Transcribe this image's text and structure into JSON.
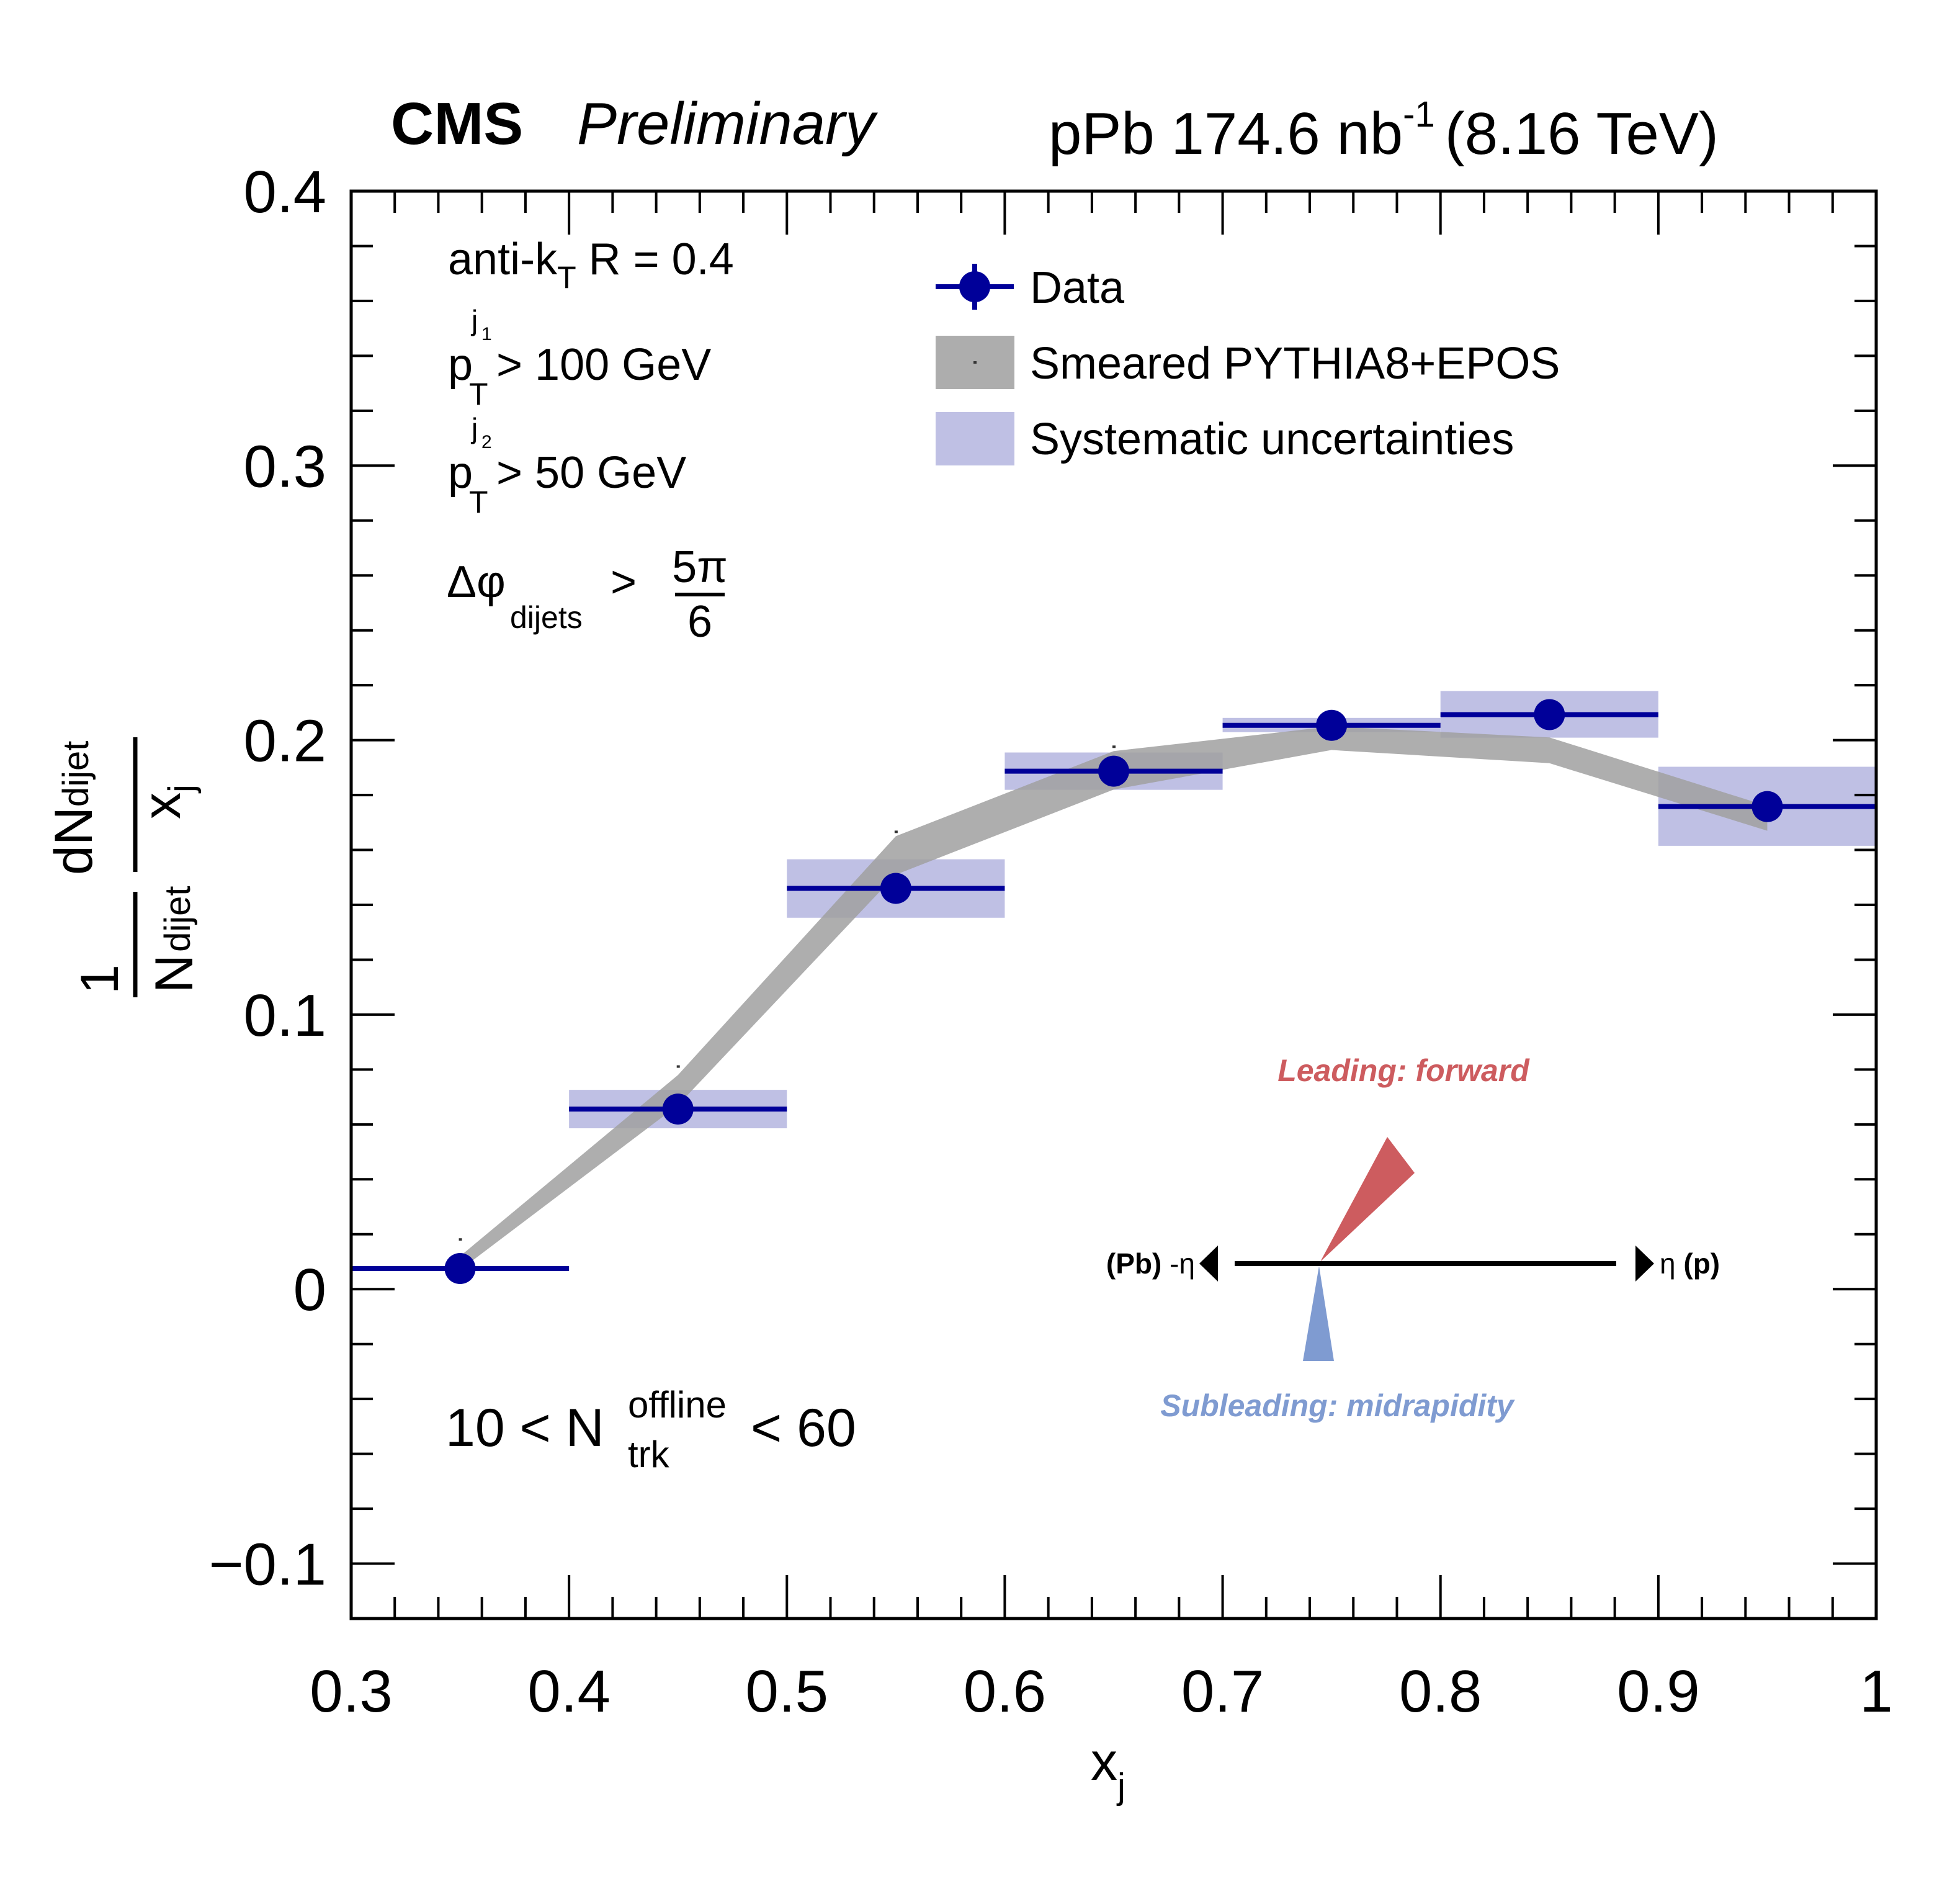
{
  "header": {
    "experiment": "CMS",
    "status": "Preliminary",
    "lumi_prefix": "pPb 174.6 nb",
    "lumi_exp": "-1",
    "energy": "(8.16 TeV)"
  },
  "cuts": {
    "algo": "anti-k",
    "algo_sub": "T",
    "algo_rest": " R = 0.4",
    "pt1_p": "p",
    "pt1_sub": "T",
    "pt1_sup": "j",
    "pt1_supsub": "1",
    "pt1_rest": " > 100 GeV",
    "pt2_p": "p",
    "pt2_sub": "T",
    "pt2_sup": "j",
    "pt2_supsub": "2",
    "pt2_rest": " > 50 GeV",
    "dphi": "Δφ",
    "dphi_sub": "dijets",
    "dphi_gt": ">",
    "dphi_num": "5π",
    "dphi_den": "6",
    "ntrk_left": "10 < N",
    "ntrk_sup": "offline",
    "ntrk_sub": "trk",
    "ntrk_right": "< 60"
  },
  "diagram": {
    "leading_label": "Leading: forward",
    "subleading_label": "Subleading: midrapidity",
    "left_label_bold": "(Pb)",
    "left_label_eta": " -η",
    "right_label_eta": "η ",
    "right_label_bold": "(p)",
    "leading_color": "#cd5c5f",
    "subleading_color": "#7f9bd1"
  },
  "colors": {
    "data": "#000099",
    "systematic": "#bfc0e4",
    "mc_band": "#a0a0a0"
  },
  "chart_data": {
    "type": "scatter",
    "title": "CMS Preliminary — pPb 174.6 nb^-1 (8.16 TeV)",
    "xlabel": "x",
    "xlabel_sub": "j",
    "ylabel_num": "dN",
    "ylabel_num_sub": "dijet",
    "ylabel_num_den": "x",
    "ylabel_num_den_sub": "j",
    "ylabel_one": "1",
    "ylabel_den": "N",
    "ylabel_den_sub": "dijet",
    "xlim": [
      0.3,
      1.0
    ],
    "ylim": [
      -0.12,
      0.4
    ],
    "xticks": [
      0.3,
      0.4,
      0.5,
      0.6,
      0.7,
      0.8,
      0.9,
      1.0
    ],
    "xtick_labels": [
      "0.3",
      "0.4",
      "0.5",
      "0.6",
      "0.7",
      "0.8",
      "0.9",
      "1"
    ],
    "yticks": [
      -0.1,
      0.0,
      0.1,
      0.2,
      0.3,
      0.4
    ],
    "ytick_labels": [
      "−0.1",
      "0",
      "0.1",
      "0.2",
      "0.3",
      "0.4"
    ],
    "grid": false,
    "legend": {
      "placement": "top-right",
      "entries": [
        {
          "label": "Data",
          "kind": "marker"
        },
        {
          "label": "Smeared PYTHIA8+EPOS",
          "kind": "band"
        },
        {
          "label": "Systematic uncertainties",
          "kind": "box"
        }
      ]
    },
    "series": [
      {
        "name": "Data",
        "bins": [
          [
            0.3,
            0.4
          ],
          [
            0.4,
            0.5
          ],
          [
            0.5,
            0.6
          ],
          [
            0.6,
            0.7
          ],
          [
            0.7,
            0.8
          ],
          [
            0.8,
            0.9
          ],
          [
            0.9,
            1.0
          ]
        ],
        "x": [
          0.35,
          0.45,
          0.55,
          0.65,
          0.75,
          0.85,
          0.95
        ],
        "y": [
          0.0075,
          0.0656,
          0.146,
          0.1887,
          0.2054,
          0.2093,
          0.1758
        ],
        "sys_low": [
          0.0075,
          0.0586,
          0.1353,
          0.1819,
          0.2029,
          0.2009,
          0.1615
        ],
        "sys_high": [
          0.0075,
          0.0726,
          0.1566,
          0.1955,
          0.2081,
          0.2179,
          0.1903
        ]
      },
      {
        "name": "Smeared PYTHIA8+EPOS",
        "x": [
          0.35,
          0.45,
          0.55,
          0.65,
          0.75,
          0.85,
          0.95
        ],
        "low": [
          0.007,
          0.067,
          0.151,
          0.182,
          0.1964,
          0.1916,
          0.167
        ],
        "high": [
          0.012,
          0.078,
          0.165,
          0.196,
          0.205,
          0.201,
          0.176
        ]
      }
    ]
  }
}
